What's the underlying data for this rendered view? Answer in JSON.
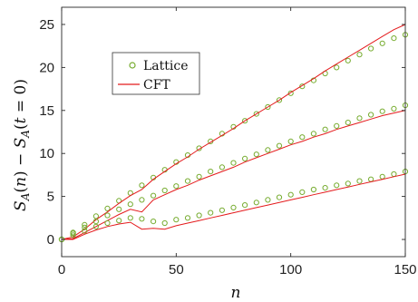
{
  "chart_data": {
    "type": "scatter",
    "xlabel": "n",
    "ylabel": "S_A(n) − S_A(t = 0)",
    "xlim": [
      0,
      150
    ],
    "ylim": [
      -2,
      27
    ],
    "xticks": [
      0,
      50,
      100,
      150
    ],
    "yticks": [
      0,
      5,
      10,
      15,
      20,
      25
    ],
    "grid": false,
    "legend_position": "upper-left",
    "colors": {
      "lattice": "#77ac30",
      "cft": "#e41a1c"
    },
    "legend": [
      {
        "label": "Lattice",
        "marker": "circle"
      },
      {
        "label": "CFT",
        "marker": "line"
      }
    ],
    "series": [
      {
        "name": "Lattice",
        "group": "upper",
        "style": "markers",
        "x": [
          0,
          5,
          10,
          15,
          20,
          25,
          30,
          35,
          40,
          45,
          50,
          55,
          60,
          65,
          70,
          75,
          80,
          85,
          90,
          95,
          100,
          105,
          110,
          115,
          120,
          125,
          130,
          135,
          140,
          145,
          150
        ],
        "y": [
          0,
          0.8,
          1.7,
          2.7,
          3.6,
          4.5,
          5.4,
          6.3,
          7.2,
          8.1,
          9.0,
          9.8,
          10.6,
          11.4,
          12.3,
          13.1,
          13.8,
          14.6,
          15.4,
          16.2,
          17.0,
          17.8,
          18.5,
          19.3,
          20.0,
          20.8,
          21.5,
          22.2,
          22.8,
          23.4,
          23.8
        ]
      },
      {
        "name": "CFT",
        "group": "upper",
        "style": "line",
        "x": [
          0,
          5,
          10,
          15,
          20,
          25,
          30,
          35,
          40,
          45,
          50,
          55,
          60,
          65,
          70,
          75,
          80,
          85,
          90,
          95,
          100,
          105,
          110,
          115,
          120,
          125,
          130,
          135,
          140,
          145,
          150
        ],
        "y": [
          0,
          0.3,
          1.2,
          2.3,
          3.2,
          4.2,
          5.1,
          5.8,
          7.0,
          7.9,
          8.8,
          9.6,
          10.5,
          11.3,
          12.1,
          12.9,
          13.8,
          14.6,
          15.4,
          16.2,
          17.1,
          17.9,
          18.7,
          19.6,
          20.4,
          21.2,
          22.0,
          22.8,
          23.6,
          24.4,
          25.0
        ]
      },
      {
        "name": "Lattice",
        "group": "middle",
        "style": "markers",
        "x": [
          0,
          5,
          10,
          15,
          20,
          25,
          30,
          35,
          40,
          45,
          50,
          55,
          60,
          65,
          70,
          75,
          80,
          85,
          90,
          95,
          100,
          105,
          110,
          115,
          120,
          125,
          130,
          135,
          140,
          145,
          150
        ],
        "y": [
          0,
          0.7,
          1.4,
          2.1,
          2.8,
          3.5,
          4.1,
          4.6,
          5.1,
          5.7,
          6.2,
          6.8,
          7.3,
          7.9,
          8.4,
          8.9,
          9.4,
          9.9,
          10.4,
          10.9,
          11.4,
          11.9,
          12.3,
          12.8,
          13.2,
          13.6,
          14.1,
          14.5,
          14.9,
          15.2,
          15.6
        ]
      },
      {
        "name": "CFT",
        "group": "middle",
        "style": "line",
        "x": [
          0,
          5,
          10,
          15,
          20,
          25,
          30,
          35,
          40,
          45,
          50,
          55,
          60,
          65,
          70,
          75,
          80,
          85,
          90,
          95,
          100,
          105,
          110,
          115,
          120,
          125,
          130,
          135,
          140,
          145,
          150
        ],
        "y": [
          0,
          0.1,
          0.8,
          1.5,
          2.2,
          2.9,
          3.5,
          3.2,
          4.6,
          5.2,
          5.8,
          6.3,
          6.9,
          7.4,
          7.9,
          8.4,
          9.0,
          9.5,
          10.0,
          10.5,
          11.0,
          11.4,
          11.9,
          12.3,
          12.8,
          13.2,
          13.6,
          14.0,
          14.4,
          14.7,
          15.0
        ]
      },
      {
        "name": "Lattice",
        "group": "lower",
        "style": "markers",
        "x": [
          0,
          5,
          10,
          15,
          20,
          25,
          30,
          35,
          40,
          45,
          50,
          55,
          60,
          65,
          70,
          75,
          80,
          85,
          90,
          95,
          100,
          105,
          110,
          115,
          120,
          125,
          130,
          135,
          140,
          145,
          150
        ],
        "y": [
          0,
          0.5,
          1.0,
          1.5,
          1.9,
          2.2,
          2.5,
          2.4,
          2.1,
          1.9,
          2.3,
          2.5,
          2.8,
          3.1,
          3.4,
          3.7,
          4.0,
          4.3,
          4.6,
          4.9,
          5.2,
          5.5,
          5.8,
          6.0,
          6.3,
          6.5,
          6.8,
          7.0,
          7.3,
          7.6,
          7.9
        ]
      },
      {
        "name": "CFT",
        "group": "lower",
        "style": "line",
        "x": [
          0,
          5,
          10,
          15,
          20,
          25,
          30,
          35,
          40,
          45,
          50,
          55,
          60,
          65,
          70,
          75,
          80,
          85,
          90,
          95,
          100,
          105,
          110,
          115,
          120,
          125,
          130,
          135,
          140,
          145,
          150
        ],
        "y": [
          0,
          0.0,
          0.6,
          1.1,
          1.5,
          1.8,
          2.0,
          1.2,
          1.3,
          1.2,
          1.6,
          1.9,
          2.2,
          2.5,
          2.8,
          3.1,
          3.4,
          3.7,
          4.0,
          4.3,
          4.6,
          4.9,
          5.2,
          5.5,
          5.8,
          6.1,
          6.4,
          6.7,
          7.0,
          7.3,
          7.6
        ]
      }
    ]
  }
}
